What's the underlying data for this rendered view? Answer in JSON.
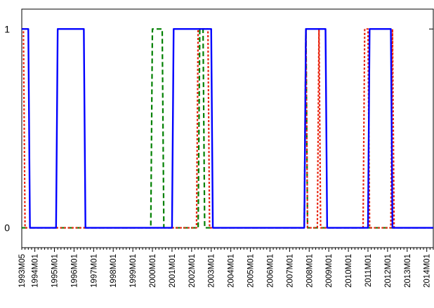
{
  "chart_data": {
    "type": "line",
    "title": "",
    "xlabel": "",
    "ylabel": "",
    "ylim": [
      -0.1,
      1.1
    ],
    "xlim": [
      "1993M05",
      "2014M05"
    ],
    "y_ticks": [
      0,
      1
    ],
    "y_tick_labels": [
      "0",
      "1"
    ],
    "x_tick_labels": [
      "1993M05",
      "1994M01",
      "1995M01",
      "1996M01",
      "1997M01",
      "1998M01",
      "1999M01",
      "2000M01",
      "2001M01",
      "2002M01",
      "2003M01",
      "2004M01",
      "2005M01",
      "2006M01",
      "2007M01",
      "2008M01",
      "2009M01",
      "2010M01",
      "2011M01",
      "2012M01",
      "2013M01",
      "2014M01"
    ],
    "grid": false,
    "legend": "none",
    "series": [
      {
        "color": "#0000ff",
        "style": "solid",
        "points": [
          [
            "1993M05",
            1
          ],
          [
            "1993M09",
            1
          ],
          [
            "1993M10",
            0
          ],
          [
            "1995M02",
            0
          ],
          [
            "1995M03",
            1
          ],
          [
            "1996M07",
            1
          ],
          [
            "1996M08",
            0
          ],
          [
            "2001M01",
            0
          ],
          [
            "2001M02",
            1
          ],
          [
            "2003M01",
            1
          ],
          [
            "2003M02",
            0
          ],
          [
            "2007M10",
            0
          ],
          [
            "2007M11",
            1
          ],
          [
            "2008M11",
            1
          ],
          [
            "2008M12",
            0
          ],
          [
            "2011M01",
            0
          ],
          [
            "2011M02",
            1
          ],
          [
            "2012M03",
            1
          ],
          [
            "2012M04",
            0
          ],
          [
            "2014M05",
            0
          ]
        ]
      },
      {
        "color": "#e8220c",
        "style": "dotted",
        "points": [
          [
            "1993M05",
            1
          ],
          [
            "1993M06",
            1
          ],
          [
            "1993M07",
            0
          ],
          [
            "2002M04",
            0
          ],
          [
            "2002M05",
            1
          ],
          [
            "2002M11",
            1
          ],
          [
            "2002M12",
            0
          ],
          [
            "2007M10",
            0
          ],
          [
            "2007M11",
            1
          ],
          [
            "2007M12",
            0
          ],
          [
            "2008M06",
            0
          ],
          [
            "2008M07",
            1
          ],
          [
            "2008M08",
            0
          ],
          [
            "2010M10",
            0
          ],
          [
            "2010M11",
            1
          ],
          [
            "2011M01",
            1
          ],
          [
            "2011M02",
            0
          ],
          [
            "2012M03",
            0
          ],
          [
            "2012M04",
            1
          ],
          [
            "2012M05",
            0
          ],
          [
            "2014M05",
            0
          ]
        ]
      },
      {
        "color": "#008000",
        "style": "dashed",
        "points": [
          [
            "1993M05",
            0
          ],
          [
            "1999M12",
            0
          ],
          [
            "2000M01",
            1
          ],
          [
            "2000M07",
            1
          ],
          [
            "2000M08",
            0
          ],
          [
            "2002M05",
            0
          ],
          [
            "2002M06",
            1
          ],
          [
            "2002M08",
            1
          ],
          [
            "2002M09",
            0
          ],
          [
            "2007M10",
            0
          ],
          [
            "2007M11",
            1
          ],
          [
            "2007M12",
            0
          ],
          [
            "2014M05",
            0
          ]
        ]
      }
    ]
  }
}
